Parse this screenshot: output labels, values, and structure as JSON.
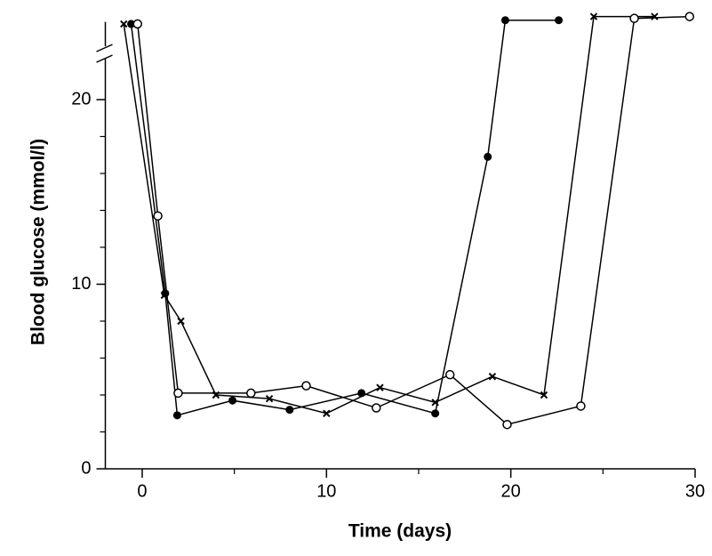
{
  "chart_data": {
    "type": "line",
    "xlabel": "Time (days)",
    "ylabel": "Blood glucose (mmol/l)",
    "xlim": [
      -2,
      30
    ],
    "ylim": [
      0,
      24.5
    ],
    "xticks": [
      0,
      10,
      20,
      30
    ],
    "yticks": [
      0,
      10,
      20
    ],
    "xminorticks": [
      5,
      15,
      25
    ],
    "yminorticks": [
      2,
      4,
      6,
      8,
      12,
      14,
      16,
      18
    ],
    "axis_break": true,
    "series": [
      {
        "marker": "filled-circle",
        "color": "#000000",
        "x": [
          -0.6,
          1.25,
          1.9,
          4.9,
          8.0,
          11.9,
          15.9,
          18.75,
          19.7,
          22.6
        ],
        "values": [
          24.1,
          9.5,
          2.9,
          3.7,
          3.2,
          4.1,
          3.0,
          16.9,
          24.3,
          24.3
        ]
      },
      {
        "marker": "open-circle",
        "color": "#000000",
        "x": [
          -0.25,
          0.85,
          1.95,
          5.9,
          8.9,
          12.7,
          16.7,
          19.8,
          23.8,
          26.7,
          29.7
        ],
        "values": [
          24.1,
          13.7,
          4.1,
          4.1,
          4.5,
          3.3,
          5.1,
          2.4,
          3.4,
          24.4,
          24.5
        ]
      },
      {
        "marker": "cross",
        "color": "#000000",
        "x": [
          -1.0,
          1.2,
          2.1,
          4.0,
          6.9,
          10.0,
          12.9,
          15.9,
          19.0,
          21.8,
          24.5,
          27.8
        ],
        "values": [
          24.1,
          9.4,
          8.0,
          4.0,
          3.8,
          3.0,
          4.4,
          3.6,
          5.0,
          4.0,
          24.5,
          24.5
        ]
      }
    ]
  }
}
